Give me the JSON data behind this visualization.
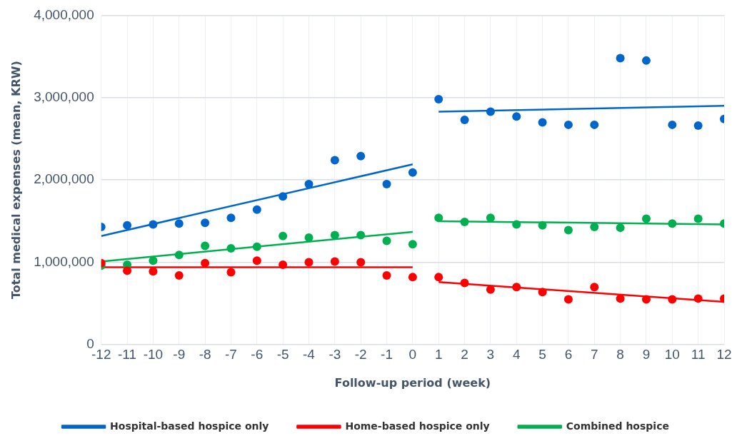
{
  "chart_data": {
    "type": "scatter",
    "xlabel": "Follow-up period (week)",
    "ylabel": "Total medical expenses (mean, KRW)",
    "x": [
      -12,
      -11,
      -10,
      -9,
      -8,
      -7,
      -6,
      -5,
      -4,
      -3,
      -2,
      -1,
      0,
      1,
      2,
      3,
      4,
      5,
      6,
      7,
      8,
      9,
      10,
      11,
      12
    ],
    "xlim": [
      -12,
      12
    ],
    "xticks": [
      -12,
      -11,
      -10,
      -9,
      -8,
      -7,
      -6,
      -5,
      -4,
      -3,
      -2,
      -1,
      0,
      1,
      2,
      3,
      4,
      5,
      6,
      7,
      8,
      9,
      10,
      11,
      12
    ],
    "ylim": [
      0,
      4000000
    ],
    "yticks": [
      {
        "value": 0,
        "label": "0"
      },
      {
        "value": 1000000,
        "label": "1,000,000"
      },
      {
        "value": 2000000,
        "label": "2,000,000"
      },
      {
        "value": 3000000,
        "label": "3,000,000"
      },
      {
        "value": 4000000,
        "label": "4,000,000"
      }
    ],
    "grid": true,
    "legend": "bottom",
    "marker": "circle",
    "series": [
      {
        "color": "#0066cc",
        "values": [
          1430000,
          1450000,
          1460000,
          1470000,
          1480000,
          1540000,
          1640000,
          1800000,
          1950000,
          2240000,
          2290000,
          1950000,
          2090000,
          2980000,
          2730000,
          2830000,
          2770000,
          2700000,
          2670000,
          2670000,
          3480000,
          3450000,
          2670000,
          2660000,
          2740000
        ]
      },
      {
        "color": "#ff0000",
        "values": [
          990000,
          900000,
          890000,
          840000,
          990000,
          880000,
          1020000,
          970000,
          1000000,
          1010000,
          1000000,
          840000,
          820000,
          820000,
          750000,
          670000,
          700000,
          640000,
          550000,
          700000,
          560000,
          550000,
          550000,
          560000,
          560000
        ]
      },
      {
        "color": "#00b050",
        "values": [
          960000,
          970000,
          1020000,
          1090000,
          1200000,
          1170000,
          1190000,
          1320000,
          1300000,
          1330000,
          1330000,
          1260000,
          1220000,
          1540000,
          1490000,
          1540000,
          1460000,
          1450000,
          1390000,
          1430000,
          1420000,
          1530000,
          1470000,
          1530000,
          1470000
        ]
      },
      {
        "type": "line",
        "marker": "none",
        "name": "Hospital-based hospice only",
        "color": "#0066cc",
        "x": [
          -12,
          0
        ],
        "values": [
          1320000,
          2190000
        ]
      },
      {
        "type": "line",
        "marker": "none",
        "color": "#0066cc",
        "x": [
          1,
          12
        ],
        "values": [
          2830000,
          2900000
        ]
      },
      {
        "type": "line",
        "marker": "none",
        "name": "Home-based hospice only",
        "color": "#ff0000",
        "x": [
          -12,
          0
        ],
        "values": [
          940000,
          940000
        ]
      },
      {
        "type": "line",
        "marker": "none",
        "color": "#ff0000",
        "x": [
          1,
          12
        ],
        "values": [
          760000,
          520000
        ]
      },
      {
        "type": "line",
        "marker": "none",
        "name": "Combined hospice",
        "color": "#00b050",
        "x": [
          -12,
          0
        ],
        "values": [
          1010000,
          1370000
        ]
      },
      {
        "type": "line",
        "marker": "none",
        "color": "#00b050",
        "x": [
          1,
          12
        ],
        "values": [
          1500000,
          1460000
        ]
      }
    ]
  }
}
